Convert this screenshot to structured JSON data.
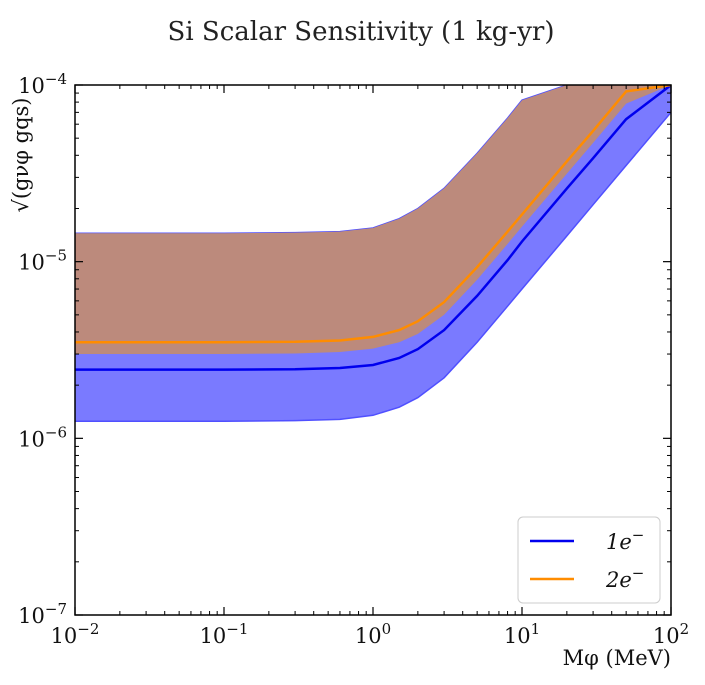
{
  "chart_data": {
    "type": "area",
    "title": "Si Scalar Sensitivity (1 kg-yr)",
    "xlabel": "Mφ (MeV)",
    "ylabel": "√(gνφ gqs)",
    "xscale": "log",
    "yscale": "log",
    "xlim": [
      0.01,
      100
    ],
    "ylim": [
      1e-07,
      0.0001
    ],
    "x_ticks": [
      {
        "value": 0.01,
        "base": "10",
        "exp": "−2"
      },
      {
        "value": 0.1,
        "base": "10",
        "exp": "−1"
      },
      {
        "value": 1,
        "base": "10",
        "exp": "0"
      },
      {
        "value": 10,
        "base": "10",
        "exp": "1"
      },
      {
        "value": 100,
        "base": "10",
        "exp": "2"
      }
    ],
    "y_ticks": [
      {
        "value": 1e-07,
        "base": "10",
        "exp": "−7"
      },
      {
        "value": 1e-06,
        "base": "10",
        "exp": "−6"
      },
      {
        "value": 1e-05,
        "base": "10",
        "exp": "−5"
      },
      {
        "value": 0.0001,
        "base": "10",
        "exp": "−4"
      }
    ],
    "legend_position": "bottom-right",
    "x": [
      0.01,
      0.03,
      0.1,
      0.3,
      0.6,
      1,
      1.5,
      2,
      3,
      5,
      8,
      10,
      20,
      30,
      50,
      100
    ],
    "series": [
      {
        "name": "1e⁻",
        "legend_base": "1e",
        "legend_sup": "−",
        "color": "#0000ee",
        "values": [
          2.45e-06,
          2.45e-06,
          2.45e-06,
          2.46e-06,
          2.5e-06,
          2.6e-06,
          2.85e-06,
          3.2e-06,
          4.1e-06,
          6.4e-06,
          1.02e-05,
          1.3e-05,
          2.6e-05,
          3.85e-05,
          6.4e-05,
          0.0001
        ],
        "band_low": [
          1.25e-06,
          1.25e-06,
          1.25e-06,
          1.26e-06,
          1.28e-06,
          1.35e-06,
          1.5e-06,
          1.7e-06,
          2.2e-06,
          3.5e-06,
          5.6e-06,
          7e-06,
          1.4e-05,
          2.1e-05,
          3.5e-05,
          7e-05
        ],
        "band_high": [
          1.45e-05,
          1.45e-05,
          1.45e-05,
          1.46e-05,
          1.48e-05,
          1.55e-05,
          1.75e-05,
          2e-05,
          2.6e-05,
          4.1e-05,
          6.5e-05,
          8.2e-05,
          0.0001,
          0.0001,
          0.0001,
          0.0001
        ],
        "band_color": "#7a7aff"
      },
      {
        "name": "2e⁻",
        "legend_base": "2e",
        "legend_sup": "−",
        "color": "#ff8c00",
        "values": [
          3.5e-06,
          3.5e-06,
          3.5e-06,
          3.52e-06,
          3.58e-06,
          3.75e-06,
          4.1e-06,
          4.6e-06,
          5.9e-06,
          9.3e-06,
          1.48e-05,
          1.85e-05,
          3.7e-05,
          5.5e-05,
          9.2e-05,
          0.0001
        ],
        "band_low": [
          3e-06,
          3e-06,
          3e-06,
          3.02e-06,
          3.08e-06,
          3.22e-06,
          3.5e-06,
          3.9e-06,
          5e-06,
          7.9e-06,
          1.26e-05,
          1.58e-05,
          3.15e-05,
          4.7e-05,
          7.85e-05,
          0.0001
        ],
        "band_high": [
          1.45e-05,
          1.45e-05,
          1.45e-05,
          1.46e-05,
          1.48e-05,
          1.55e-05,
          1.75e-05,
          2e-05,
          2.6e-05,
          4.1e-05,
          6.5e-05,
          8.2e-05,
          0.0001,
          0.0001,
          0.0001,
          0.0001
        ],
        "band_color": "#bc8a7c"
      }
    ]
  }
}
